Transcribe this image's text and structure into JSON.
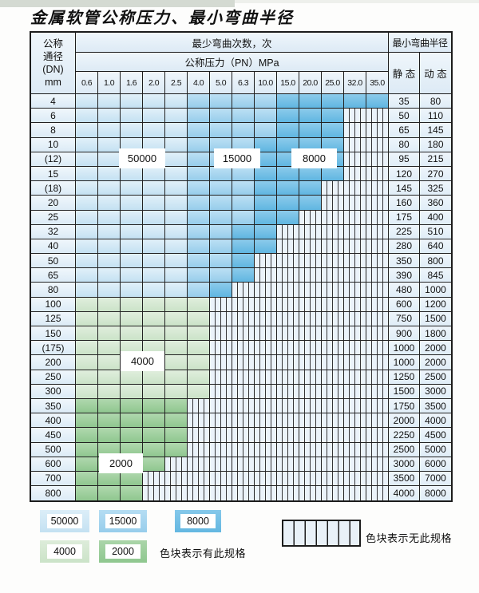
{
  "page": {
    "title": "金属软管公称压力、最小弯曲半径"
  },
  "table": {
    "header": {
      "dn_lines": [
        "公称",
        "通径",
        "(DN)",
        "mm"
      ],
      "cycles_title": "最少弯曲次数，次",
      "pressure_title": "公称压力（PN）MPa",
      "radius_title": "最小弯曲半径",
      "static_label": "静 态",
      "dynamic_label": "动 态",
      "pressures": [
        "0.6",
        "1.0",
        "1.6",
        "2.0",
        "2.5",
        "4.0",
        "5.0",
        "6.3",
        "10.0",
        "15.0",
        "20.0",
        "25.0",
        "32.0",
        "35.0"
      ]
    },
    "cell_code_legend": {
      "L": "50000 次",
      "M": "15000 次",
      "D": "8000 次",
      "G": "4000 次",
      "g": "2000 次",
      "X": "无此规格"
    },
    "rows": [
      {
        "dn": "4",
        "cells": "LLLLLMMMMDDDDD",
        "static": "35",
        "dynamic": "80"
      },
      {
        "dn": "6",
        "cells": "LLLLLMMMMDDDXX",
        "static": "50",
        "dynamic": "110"
      },
      {
        "dn": "8",
        "cells": "LLLLLMMMMDDDXX",
        "static": "65",
        "dynamic": "145"
      },
      {
        "dn": "10",
        "cells": "LLLLLMMMDDDDXX",
        "static": "80",
        "dynamic": "180"
      },
      {
        "dn": "(12)",
        "cells": "LLLLLMMMDDDDXX",
        "static": "95",
        "dynamic": "215"
      },
      {
        "dn": "15",
        "cells": "LLLLLMMMDDDDXX",
        "static": "120",
        "dynamic": "270"
      },
      {
        "dn": "(18)",
        "cells": "LLLLLMMMDDDXXX",
        "static": "145",
        "dynamic": "325"
      },
      {
        "dn": "20",
        "cells": "LLLLLMMMDDDXXX",
        "static": "160",
        "dynamic": "360"
      },
      {
        "dn": "25",
        "cells": "LLLLLMMMDDXXXX",
        "static": "175",
        "dynamic": "400"
      },
      {
        "dn": "32",
        "cells": "LLLLLMMDDXXXXX",
        "static": "225",
        "dynamic": "510"
      },
      {
        "dn": "40",
        "cells": "LLLLLMMDDXXXXX",
        "static": "280",
        "dynamic": "640"
      },
      {
        "dn": "50",
        "cells": "LLLLLMMDXXXXXX",
        "static": "350",
        "dynamic": "800"
      },
      {
        "dn": "65",
        "cells": "LLLLLMMDXXXXXX",
        "static": "390",
        "dynamic": "845"
      },
      {
        "dn": "80",
        "cells": "LLLLLMDXXXXXXX",
        "static": "480",
        "dynamic": "1000"
      },
      {
        "dn": "100",
        "cells": "GGGGGGXXXXXXXX",
        "static": "600",
        "dynamic": "1200"
      },
      {
        "dn": "125",
        "cells": "GGGGGGXXXXXXXX",
        "static": "750",
        "dynamic": "1500"
      },
      {
        "dn": "150",
        "cells": "GGGGGGXXXXXXXX",
        "static": "900",
        "dynamic": "1800"
      },
      {
        "dn": "(175)",
        "cells": "GGGGGGXXXXXXXX",
        "static": "1000",
        "dynamic": "2000"
      },
      {
        "dn": "200",
        "cells": "GGGGGGXXXXXXXX",
        "static": "1000",
        "dynamic": "2000"
      },
      {
        "dn": "250",
        "cells": "GGGGGGXXXXXXXX",
        "static": "1250",
        "dynamic": "2500"
      },
      {
        "dn": "300",
        "cells": "GGGGGGXXXXXXXX",
        "static": "1500",
        "dynamic": "3000"
      },
      {
        "dn": "350",
        "cells": "gggggXXXXXXXXX",
        "static": "1750",
        "dynamic": "3500"
      },
      {
        "dn": "400",
        "cells": "gggggXXXXXXXXX",
        "static": "2000",
        "dynamic": "4000"
      },
      {
        "dn": "450",
        "cells": "gggggXXXXXXXXX",
        "static": "2250",
        "dynamic": "4500"
      },
      {
        "dn": "500",
        "cells": "gggggXXXXXXXXX",
        "static": "2500",
        "dynamic": "5000"
      },
      {
        "dn": "600",
        "cells": "ggggXXXXXXXXXX",
        "static": "3000",
        "dynamic": "6000"
      },
      {
        "dn": "700",
        "cells": "gggXXXXXXXXXXX",
        "static": "3500",
        "dynamic": "7000"
      },
      {
        "dn": "800",
        "cells": "gggXXXXXXXXXXX",
        "static": "4000",
        "dynamic": "8000"
      }
    ],
    "overlays": [
      {
        "label": "50000"
      },
      {
        "label": "15000"
      },
      {
        "label": "8000"
      },
      {
        "label": "4000"
      },
      {
        "label": "2000"
      }
    ]
  },
  "legend": {
    "swatches": [
      {
        "label": "50000",
        "color": "#c4e1f2"
      },
      {
        "label": "15000",
        "color": "#97cdeb"
      },
      {
        "label": "8000",
        "color": "#63b7e1"
      },
      {
        "label": "4000",
        "color": "#cbe3c8"
      },
      {
        "label": "2000",
        "color": "#8fc78f"
      }
    ],
    "has_spec_text": "色块表示有此规格",
    "no_spec_text": "色块表示无此规格"
  },
  "colors": {
    "cycles_50000": "#c4e1f2",
    "cycles_15000": "#97cdeb",
    "cycles_8000": "#63b7e1",
    "cycles_4000": "#cbe3c8",
    "cycles_2000": "#8fc78f",
    "no_spec_bg": "#ebf3fa",
    "header_bg": "#e4eff8",
    "border": "#1c1c1c"
  }
}
